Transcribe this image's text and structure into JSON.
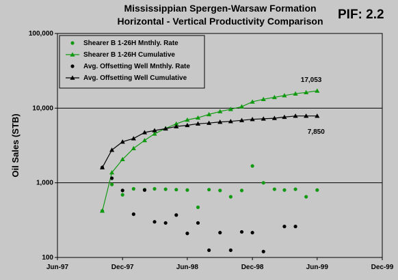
{
  "chart_data": {
    "type": "scatter",
    "title": "Mississippian Spergen-Warsaw Formation",
    "subtitle": "Horizontal - Vertical Productivity Comparison",
    "badge": "PIF: 2.2",
    "ylabel": "Oil Sales (STB)",
    "xlabel": "",
    "y_scale": "log",
    "ylim": [
      100,
      100000
    ],
    "xlim": [
      "1997-06-01",
      "1999-12-01"
    ],
    "grid": "horizontal major lines at 1,000 and 10,000",
    "legend_position": "top-left",
    "x_ticks": [
      "Jun-97",
      "Dec-97",
      "Jun-98",
      "Dec-98",
      "Jun-99",
      "Dec-99"
    ],
    "y_ticks": [
      "100",
      "1,000",
      "10,000",
      "100,000"
    ],
    "colors": {
      "background": "#c8c8c8",
      "green": "#119a11",
      "black": "#000000"
    },
    "series": [
      {
        "name": "Shearer B 1-26H Mnthly. Rate",
        "style": "green-circle-markers",
        "points": [
          [
            "1997-10-05",
            420
          ],
          [
            "1997-11-01",
            950
          ],
          [
            "1997-12-01",
            690
          ],
          [
            "1998-01-01",
            830
          ],
          [
            "1998-02-01",
            810
          ],
          [
            "1998-03-01",
            830
          ],
          [
            "1998-04-01",
            820
          ],
          [
            "1998-05-01",
            810
          ],
          [
            "1998-06-01",
            800
          ],
          [
            "1998-07-01",
            470
          ],
          [
            "1998-08-01",
            810
          ],
          [
            "1998-09-01",
            790
          ],
          [
            "1998-10-01",
            650
          ],
          [
            "1998-11-01",
            790
          ],
          [
            "1998-12-01",
            1680
          ],
          [
            "1999-01-01",
            1000
          ],
          [
            "1999-02-01",
            820
          ],
          [
            "1999-03-01",
            800
          ],
          [
            "1999-04-01",
            820
          ],
          [
            "1999-05-01",
            650
          ],
          [
            "1999-06-01",
            800
          ]
        ]
      },
      {
        "name": "Shearer B 1-26H Cumulative",
        "style": "green-triangle-line",
        "points": [
          [
            "1997-10-05",
            420
          ],
          [
            "1997-11-01",
            1370
          ],
          [
            "1997-12-01",
            2060
          ],
          [
            "1998-01-01",
            2890
          ],
          [
            "1998-02-01",
            3700
          ],
          [
            "1998-03-01",
            4530
          ],
          [
            "1998-04-01",
            5350
          ],
          [
            "1998-05-01",
            6160
          ],
          [
            "1998-06-01",
            6960
          ],
          [
            "1998-07-01",
            7430
          ],
          [
            "1998-08-01",
            8240
          ],
          [
            "1998-09-01",
            9030
          ],
          [
            "1998-10-01",
            9680
          ],
          [
            "1998-11-01",
            10470
          ],
          [
            "1998-12-01",
            12150
          ],
          [
            "1999-01-01",
            13150
          ],
          [
            "1999-02-01",
            13970
          ],
          [
            "1999-03-01",
            14770
          ],
          [
            "1999-04-01",
            15590
          ],
          [
            "1999-05-01",
            16240
          ],
          [
            "1999-06-01",
            17053
          ]
        ]
      },
      {
        "name": "Avg. Offsetting Well Mnthly. Rate",
        "style": "black-circle-markers",
        "points": [
          [
            "1997-10-05",
            1600
          ],
          [
            "1997-11-01",
            1150
          ],
          [
            "1997-12-01",
            790
          ],
          [
            "1998-01-01",
            380
          ],
          [
            "1998-02-01",
            800
          ],
          [
            "1998-03-01",
            300
          ],
          [
            "1998-04-01",
            290
          ],
          [
            "1998-05-01",
            370
          ],
          [
            "1998-06-01",
            210
          ],
          [
            "1998-07-01",
            290
          ],
          [
            "1998-08-01",
            125
          ],
          [
            "1998-09-01",
            215
          ],
          [
            "1998-10-01",
            125
          ],
          [
            "1998-11-01",
            220
          ],
          [
            "1998-12-01",
            215
          ],
          [
            "1999-01-01",
            120
          ],
          [
            "1999-03-01",
            260
          ],
          [
            "1999-04-01",
            260
          ]
        ]
      },
      {
        "name": "Avg. Offsetting Well Cumulative",
        "style": "black-triangle-line",
        "points": [
          [
            "1997-10-05",
            1600
          ],
          [
            "1997-11-01",
            2750
          ],
          [
            "1997-12-01",
            3540
          ],
          [
            "1998-01-01",
            3920
          ],
          [
            "1998-02-01",
            4720
          ],
          [
            "1998-03-01",
            5020
          ],
          [
            "1998-04-01",
            5310
          ],
          [
            "1998-05-01",
            5680
          ],
          [
            "1998-06-01",
            5890
          ],
          [
            "1998-07-01",
            6180
          ],
          [
            "1998-08-01",
            6310
          ],
          [
            "1998-09-01",
            6520
          ],
          [
            "1998-10-01",
            6650
          ],
          [
            "1998-11-01",
            6870
          ],
          [
            "1998-12-01",
            7080
          ],
          [
            "1999-01-01",
            7200
          ],
          [
            "1999-02-01",
            7330
          ],
          [
            "1999-03-01",
            7590
          ],
          [
            "1999-04-01",
            7850
          ],
          [
            "1999-05-01",
            7850
          ],
          [
            "1999-06-01",
            7850
          ]
        ]
      }
    ],
    "annotations": [
      {
        "text": "17,053",
        "series_index": 1
      },
      {
        "text": "7,850",
        "series_index": 3
      }
    ]
  }
}
